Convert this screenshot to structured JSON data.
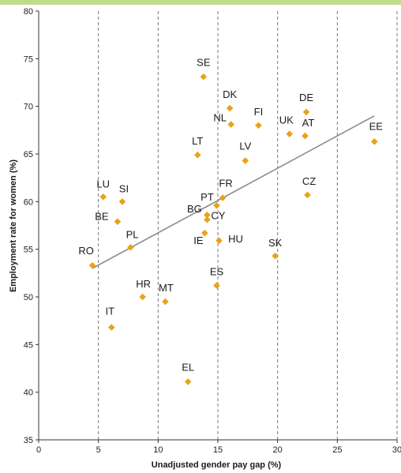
{
  "chart_data": {
    "type": "scatter",
    "title": "",
    "xlabel": "Unadjusted gender pay gap (%)",
    "ylabel": "Employment rate for women (%)",
    "xlim": [
      0,
      30
    ],
    "ylim": [
      35,
      80
    ],
    "xticks": [
      0,
      5,
      10,
      15,
      20,
      25,
      30
    ],
    "yticks": [
      35,
      40,
      45,
      50,
      55,
      60,
      65,
      70,
      75,
      80
    ],
    "grid": "vertical dashed",
    "marker_color": "#e8a317",
    "trend_color": "#8a8a8a",
    "points": [
      {
        "label": "RO",
        "x": 4.5,
        "y": 53.3
      },
      {
        "label": "LU",
        "x": 5.4,
        "y": 60.5
      },
      {
        "label": "SI",
        "x": 7.0,
        "y": 60.0
      },
      {
        "label": "BE",
        "x": 6.6,
        "y": 57.9
      },
      {
        "label": "PL",
        "x": 7.7,
        "y": 55.2
      },
      {
        "label": "IT",
        "x": 6.1,
        "y": 46.8
      },
      {
        "label": "HR",
        "x": 8.7,
        "y": 50.0
      },
      {
        "label": "MT",
        "x": 10.6,
        "y": 49.5
      },
      {
        "label": "EL",
        "x": 12.5,
        "y": 41.1
      },
      {
        "label": "SE",
        "x": 13.8,
        "y": 73.1
      },
      {
        "label": "LT",
        "x": 13.3,
        "y": 64.9
      },
      {
        "label": "BG",
        "x": 14.1,
        "y": 58.6
      },
      {
        "label": "CY",
        "x": 14.1,
        "y": 58.1
      },
      {
        "label": "IE",
        "x": 13.9,
        "y": 56.7
      },
      {
        "label": "PT",
        "x": 14.9,
        "y": 59.6
      },
      {
        "label": "FR",
        "x": 15.4,
        "y": 60.4
      },
      {
        "label": "HU",
        "x": 15.1,
        "y": 55.9
      },
      {
        "label": "ES",
        "x": 14.9,
        "y": 51.2
      },
      {
        "label": "DK",
        "x": 16.0,
        "y": 69.8
      },
      {
        "label": "NL",
        "x": 16.1,
        "y": 68.1
      },
      {
        "label": "LV",
        "x": 17.3,
        "y": 64.3
      },
      {
        "label": "FI",
        "x": 18.4,
        "y": 68.0
      },
      {
        "label": "SK",
        "x": 19.8,
        "y": 54.3
      },
      {
        "label": "UK",
        "x": 21.0,
        "y": 67.1
      },
      {
        "label": "AT",
        "x": 22.3,
        "y": 66.9
      },
      {
        "label": "DE",
        "x": 22.4,
        "y": 69.4
      },
      {
        "label": "CZ",
        "x": 22.5,
        "y": 60.7
      },
      {
        "label": "EE",
        "x": 28.1,
        "y": 66.3
      }
    ],
    "trendline": {
      "x": [
        4.5,
        28.1
      ],
      "y": [
        53.0,
        69.0
      ]
    }
  }
}
